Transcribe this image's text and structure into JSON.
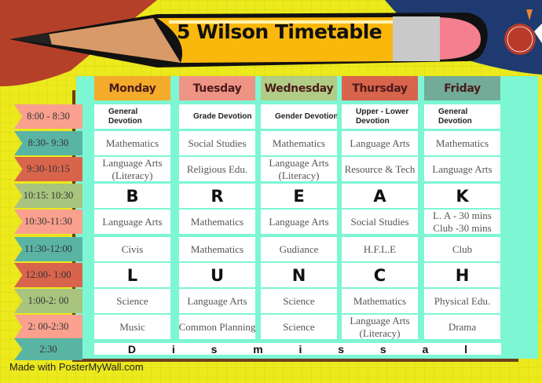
{
  "title": "5 Wilson Timetable",
  "credit": "Made with PosterMyWall.com",
  "colors": {
    "background": "#ece91c",
    "board": "#7df6d4",
    "pink": "#f9a08f",
    "teal": "#5ab4a4",
    "red": "#d9644c",
    "green": "#a8c47e"
  },
  "days": [
    {
      "label": "Monday",
      "color": "#f4ab2a"
    },
    {
      "label": "Tuesday",
      "color": "#ee9484"
    },
    {
      "label": "Wednesday",
      "color": "#b0cc86"
    },
    {
      "label": "Thursday",
      "color": "#d9644c"
    },
    {
      "label": "Friday",
      "color": "#72ab98"
    }
  ],
  "rows": [
    {
      "time": "8:00 - 8:30",
      "color": "#f9a08f",
      "type": "dev",
      "cells": [
        "General Devotion",
        "Grade Devotion",
        "Gender Devotion",
        "Upper - Lower Devotion",
        "General Devotion"
      ]
    },
    {
      "time": "8:30- 9:30",
      "color": "#5ab4a4",
      "cells": [
        "Mathematics",
        "Social Studies",
        "Mathematics",
        "Language Arts",
        "Mathematics"
      ]
    },
    {
      "time": "9:30-10:15",
      "color": "#d9644c",
      "cells": [
        "Language Arts (Literacy)",
        "Religious Edu.",
        "Language Arts (Literacy)",
        "Resource & Tech",
        "Language Arts"
      ]
    },
    {
      "time": "10:15: 10:30",
      "color": "#a8c47e",
      "type": "big",
      "cells": [
        "B",
        "R",
        "E",
        "A",
        "K"
      ]
    },
    {
      "time": "10:30-11:30",
      "color": "#f9a08f",
      "cells": [
        "Language Arts",
        "Mathematics",
        "Language Arts",
        "Social Studies",
        "L. A  - 30 mins Club -30 mins"
      ]
    },
    {
      "time": "11:30-12:00",
      "color": "#5ab4a4",
      "cells": [
        "Civis",
        "Mathematics",
        "Gudiance",
        "H.F.L.E",
        "Club"
      ]
    },
    {
      "time": "12:00- 1:00",
      "color": "#d9644c",
      "type": "big",
      "cells": [
        "L",
        "U",
        "N",
        "C",
        "H"
      ]
    },
    {
      "time": "1:00-2: 00",
      "color": "#a8c47e",
      "cells": [
        "Science",
        "Language Arts",
        "Science",
        "Mathematics",
        "Physical Edu."
      ]
    },
    {
      "time": "2: 00-2:30",
      "color": "#f9a08f",
      "cells": [
        "Music",
        "Common Planning",
        "Science",
        "Language Arts (Literacy)",
        "Drama"
      ]
    }
  ],
  "dismissal": {
    "time": "2:30",
    "color": "#5ab4a4",
    "letters": [
      "D",
      "i",
      "s",
      "m",
      "i",
      "s",
      "s",
      "a",
      "l"
    ]
  }
}
